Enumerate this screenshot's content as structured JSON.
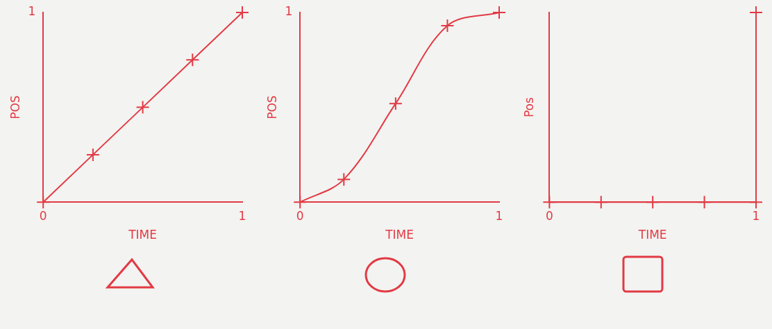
{
  "chart_data": [
    {
      "type": "line",
      "xlabel": "TIME",
      "ylabel": "POS",
      "x": [
        0,
        0.25,
        0.5,
        0.75,
        1
      ],
      "values": [
        0,
        0.25,
        0.5,
        0.75,
        1
      ],
      "xlim": [
        0,
        1
      ],
      "ylim": [
        0,
        1
      ],
      "xticks": [
        0,
        {
          "value": 0.25,
          "label": null
        },
        {
          "value": 0.5,
          "label": null
        },
        {
          "value": 0.75,
          "label": null
        },
        1
      ],
      "yticks": [
        {
          "value": 0.25,
          "label": null
        },
        {
          "value": 0.5,
          "label": null
        },
        {
          "value": 0.75,
          "label": null
        },
        1
      ],
      "color": "#e23a44",
      "marker": "cross",
      "line_style": "solid",
      "grid": false
    },
    {
      "type": "line",
      "xlabel": "TIME",
      "ylabel": "POS",
      "x": [
        0,
        0.22,
        0.48,
        0.74,
        1
      ],
      "values": [
        0,
        0.12,
        0.52,
        0.93,
        1
      ],
      "xlim": [
        0,
        1
      ],
      "ylim": [
        0,
        1
      ],
      "xticks": [
        0,
        {
          "value": 0.25,
          "label": null
        },
        {
          "value": 0.5,
          "label": null
        },
        {
          "value": 0.75,
          "label": null
        },
        1
      ],
      "yticks": [
        {
          "value": 0.17,
          "label": null
        },
        {
          "value": 0.5,
          "label": null
        },
        {
          "value": 0.83,
          "label": null
        },
        1
      ],
      "color": "#e23a44",
      "marker": "cross",
      "line_style": "solid",
      "grid": false
    },
    {
      "type": "line",
      "xlabel": "TIME",
      "ylabel": "Pos",
      "x": [
        0,
        0.25,
        0.5,
        0.75,
        1,
        1
      ],
      "values": [
        0,
        0,
        0,
        0,
        0,
        1
      ],
      "xlim": [
        0,
        1
      ],
      "ylim": [
        0,
        1
      ],
      "xticks": [
        0,
        {
          "value": 0.25,
          "label": null
        },
        {
          "value": 0.5,
          "label": null
        },
        {
          "value": 0.75,
          "label": null
        },
        1
      ],
      "yticks": [
        {
          "value": 0.17,
          "label": null
        },
        {
          "value": 0.7,
          "label": null
        },
        {
          "value": 0.95,
          "label": null
        }
      ],
      "color": "#e23a44",
      "marker": "cross",
      "line_style": "solid",
      "grid": false
    }
  ]
}
